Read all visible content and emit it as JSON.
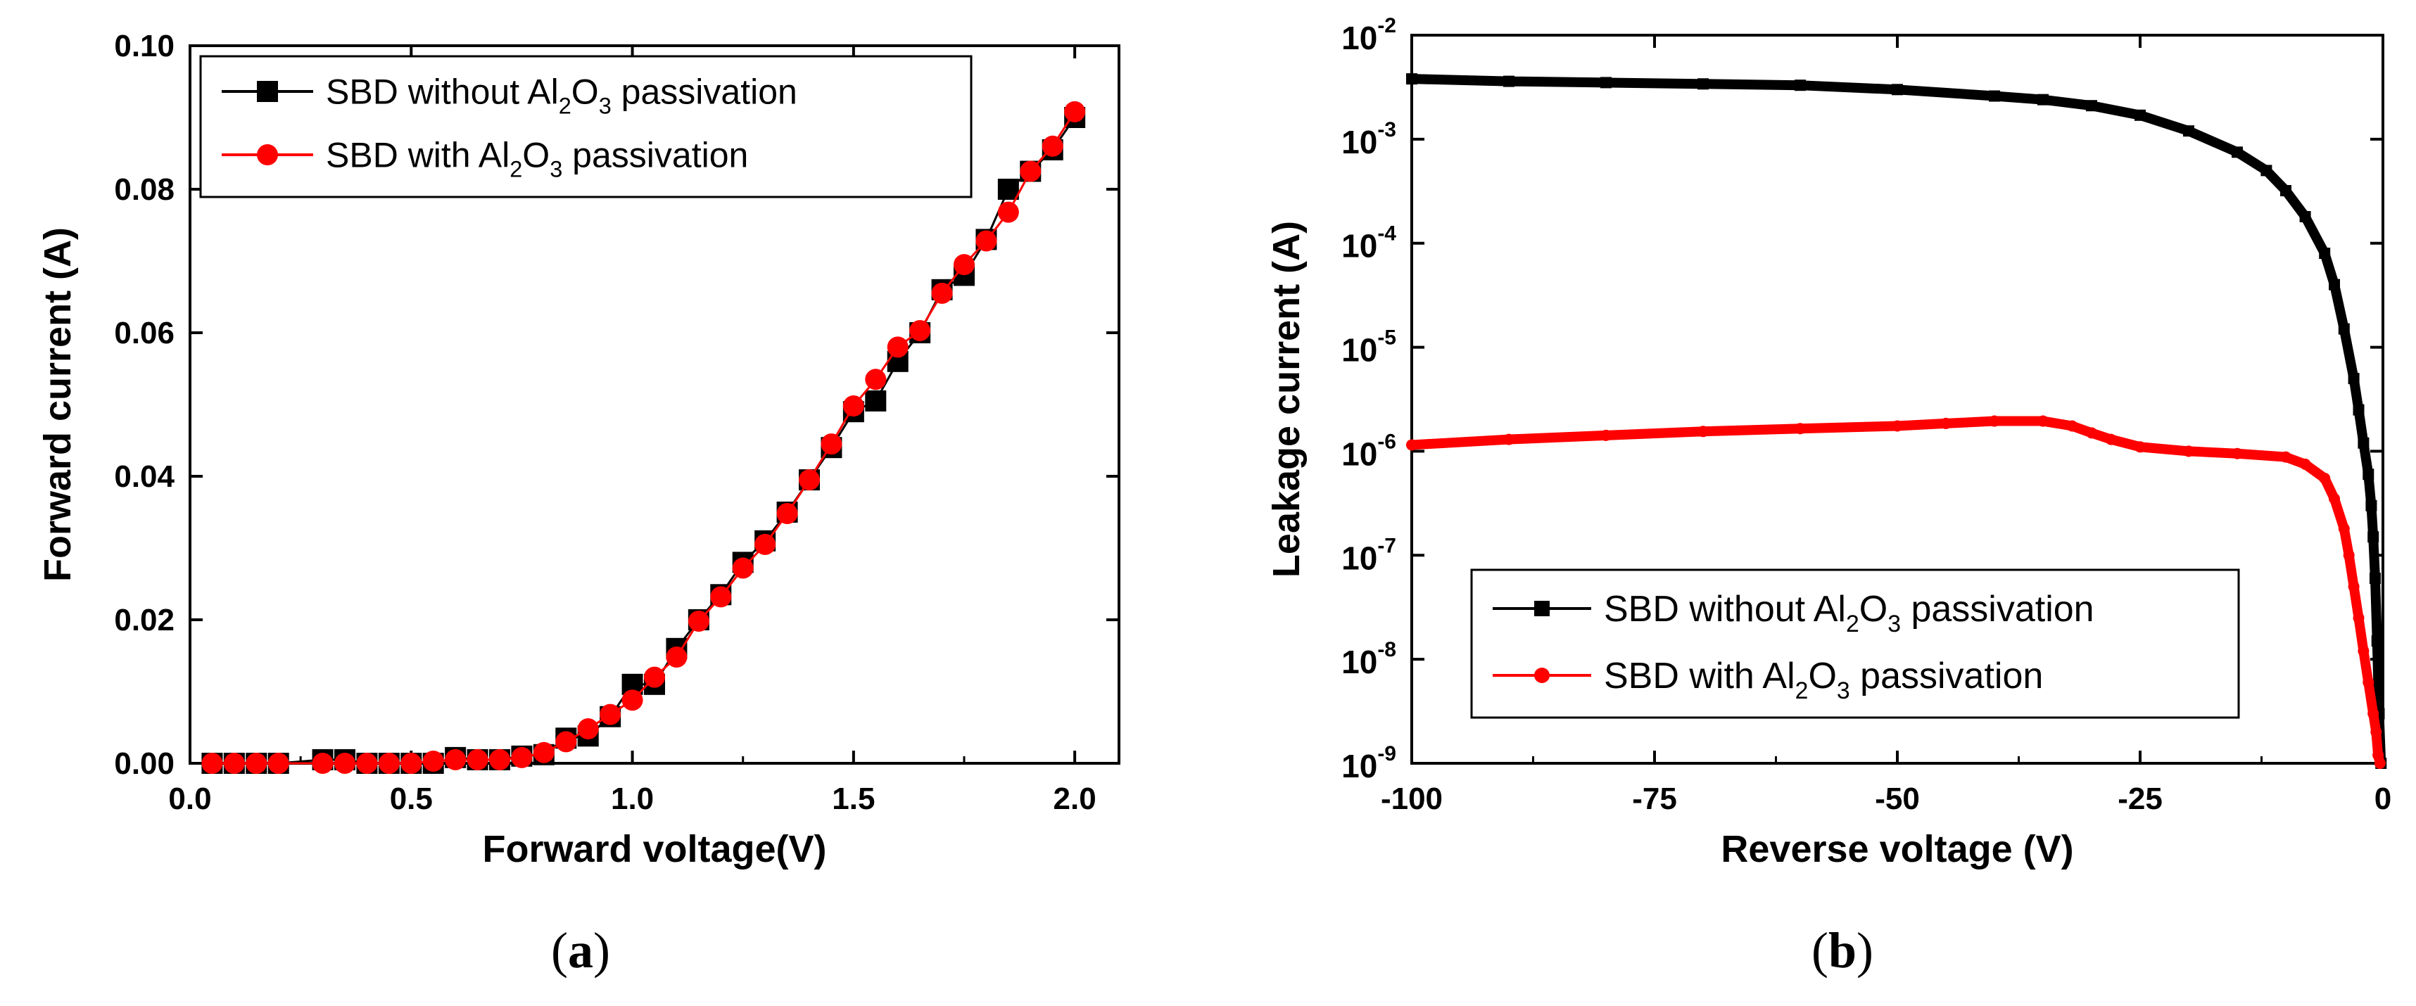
{
  "chart_data": [
    {
      "type": "scatter",
      "panel_label": "a",
      "xlabel": "Forward voltage(V)",
      "ylabel": "Forward current (A)",
      "xlim": [
        0.0,
        2.1
      ],
      "ylim": [
        0.0,
        0.1
      ],
      "xticks": [
        "0.0",
        "0.5",
        "1.0",
        "1.5",
        "2.0"
      ],
      "yticks": [
        "0.00",
        "0.02",
        "0.04",
        "0.06",
        "0.08",
        "0.10"
      ],
      "legend_position": "top-left",
      "series": [
        {
          "name": "SBD without Al2O3 passivation",
          "legend_prefix": "SBD without Al",
          "legend_middle": "O",
          "legend_suffix": " passivation",
          "legend_sub1": "2",
          "legend_sub2": "3",
          "color": "#000000",
          "marker": "square",
          "x": [
            0.05,
            0.1,
            0.15,
            0.2,
            0.3,
            0.35,
            0.4,
            0.45,
            0.5,
            0.55,
            0.6,
            0.65,
            0.7,
            0.75,
            0.8,
            0.85,
            0.9,
            0.95,
            1.0,
            1.05,
            1.1,
            1.15,
            1.2,
            1.25,
            1.3,
            1.35,
            1.4,
            1.45,
            1.5,
            1.55,
            1.6,
            1.65,
            1.7,
            1.75,
            1.8,
            1.85,
            1.9,
            1.95,
            2.0
          ],
          "y": [
            0.0,
            0.0,
            0.0,
            0.0,
            0.0005,
            0.0005,
            0.0,
            0.0,
            0.0,
            0.0,
            0.0008,
            0.0005,
            0.0005,
            0.001,
            0.0012,
            0.0035,
            0.0038,
            0.0065,
            0.011,
            0.011,
            0.016,
            0.02,
            0.0235,
            0.028,
            0.031,
            0.035,
            0.0395,
            0.044,
            0.049,
            0.0505,
            0.056,
            0.06,
            0.066,
            0.068,
            0.073,
            0.08,
            0.0825,
            0.0855,
            0.09
          ]
        },
        {
          "name": "SBD with Al2O3 passivation",
          "legend_prefix": "SBD with Al",
          "legend_middle": "O",
          "legend_suffix": " passivation",
          "legend_sub1": "2",
          "legend_sub2": "3",
          "color": "#ff0000",
          "marker": "circle",
          "x": [
            0.05,
            0.1,
            0.15,
            0.2,
            0.3,
            0.35,
            0.4,
            0.45,
            0.5,
            0.55,
            0.6,
            0.65,
            0.7,
            0.75,
            0.8,
            0.85,
            0.9,
            0.95,
            1.0,
            1.05,
            1.1,
            1.15,
            1.2,
            1.25,
            1.3,
            1.35,
            1.4,
            1.45,
            1.5,
            1.55,
            1.6,
            1.65,
            1.7,
            1.75,
            1.8,
            1.85,
            1.9,
            1.95,
            2.0
          ],
          "y": [
            0.0,
            0.0,
            0.0,
            0.0,
            0.0,
            0.0,
            0.0,
            0.0,
            0.0,
            0.0003,
            0.0005,
            0.0005,
            0.0005,
            0.0008,
            0.0015,
            0.003,
            0.0048,
            0.0068,
            0.0088,
            0.012,
            0.0148,
            0.0198,
            0.0232,
            0.0272,
            0.0305,
            0.0348,
            0.0395,
            0.0445,
            0.0498,
            0.0535,
            0.058,
            0.0603,
            0.0655,
            0.0695,
            0.0728,
            0.0768,
            0.0825,
            0.086,
            0.0908
          ]
        }
      ]
    },
    {
      "type": "line",
      "panel_label": "b",
      "xlabel": "Reverse voltage (V)",
      "ylabel": "Leakage current (A)",
      "xlim": [
        -100,
        0
      ],
      "ylim_log10": [
        -9,
        -2
      ],
      "xticks": [
        "-100",
        "-75",
        "-50",
        "-25",
        "0"
      ],
      "ytick_base": "10",
      "ytick_exponents": [
        "-9",
        "-8",
        "-7",
        "-6",
        "-5",
        "-4",
        "-3",
        "-2"
      ],
      "legend_position": "bottom-left",
      "series": [
        {
          "name": "SBD without Al2O3 passivation",
          "legend_prefix": "SBD without Al",
          "legend_middle": "O",
          "legend_suffix": " passivation",
          "legend_sub1": "2",
          "legend_sub2": "3",
          "color": "#000000",
          "marker": "square",
          "x": [
            -100,
            -90,
            -80,
            -70,
            -60,
            -50,
            -40,
            -35,
            -30,
            -25,
            -20,
            -15,
            -12,
            -10,
            -8,
            -6,
            -5,
            -4,
            -3,
            -2.5,
            -2,
            -1.5,
            -1.2,
            -1,
            -0.8,
            -0.6,
            -0.4,
            -0.2
          ],
          "y": [
            0.0038,
            0.0036,
            0.0035,
            0.0034,
            0.0033,
            0.003,
            0.0026,
            0.0024,
            0.0021,
            0.0017,
            0.0012,
            0.00075,
            0.0005,
            0.00032,
            0.00018,
            8e-05,
            4e-05,
            1.5e-05,
            5e-06,
            2.5e-06,
            1.2e-06,
            6e-07,
            3e-07,
            1.5e-07,
            6e-08,
            1.5e-08,
            3e-09,
            1e-09
          ]
        },
        {
          "name": "SBD with Al2O3 passivation",
          "legend_prefix": "SBD with Al",
          "legend_middle": "O",
          "legend_suffix": " passivation",
          "legend_sub1": "2",
          "legend_sub2": "3",
          "color": "#ff0000",
          "marker": "circle",
          "x": [
            -100,
            -90,
            -80,
            -70,
            -60,
            -50,
            -45,
            -40,
            -35,
            -32,
            -30,
            -28,
            -25,
            -20,
            -15,
            -10,
            -8,
            -6,
            -5,
            -4,
            -3.5,
            -3,
            -2.5,
            -2,
            -1.5,
            -1,
            -0.7,
            -0.5,
            -0.3
          ],
          "y": [
            1.15e-06,
            1.3e-06,
            1.42e-06,
            1.55e-06,
            1.65e-06,
            1.75e-06,
            1.85e-06,
            1.95e-06,
            1.95e-06,
            1.75e-06,
            1.5e-06,
            1.3e-06,
            1.1e-06,
            1e-06,
            9.5e-07,
            8.8e-07,
            7.5e-07,
            5.5e-07,
            3.5e-07,
            1.8e-07,
            1e-07,
            5e-08,
            2.5e-08,
            1.2e-08,
            6e-09,
            3e-09,
            2e-09,
            1.2e-09,
            1e-09
          ]
        }
      ]
    }
  ]
}
